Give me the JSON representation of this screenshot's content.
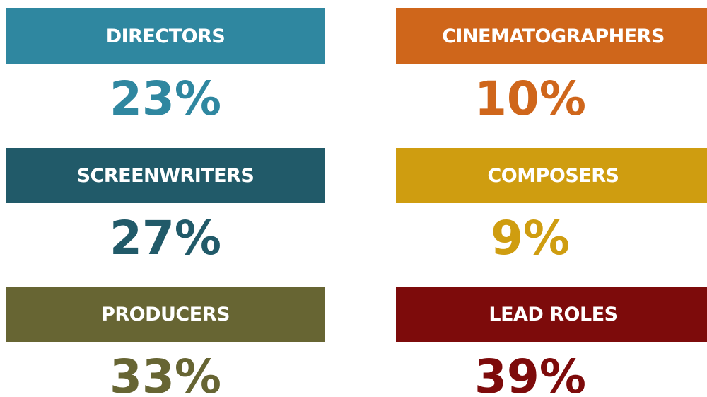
{
  "items": [
    {
      "label": "DIRECTORS",
      "value": "23%",
      "color": "#2f87a0"
    },
    {
      "label": "CINEMATOGRAPHERS",
      "value": "10%",
      "color": "#cf661b"
    },
    {
      "label": "SCREENWRITERS",
      "value": "27%",
      "color": "#215a69"
    },
    {
      "label": "COMPOSERS",
      "value": "9%",
      "color": "#cf9d10"
    },
    {
      "label": "PRODUCERS",
      "value": "33%",
      "color": "#676533"
    },
    {
      "label": "LEAD ROLES",
      "value": "39%",
      "color": "#7d0b0b"
    }
  ]
}
